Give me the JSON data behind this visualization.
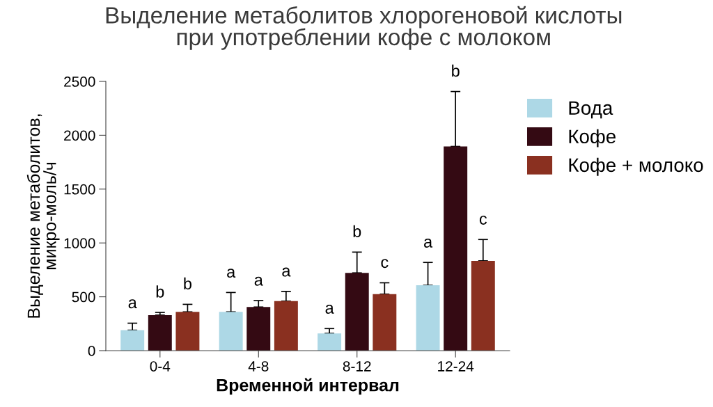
{
  "chart_data": {
    "type": "bar",
    "title": "Выделение метаболитов хлорогеновой кислоты\nпри употреблении кофе с молоком",
    "xlabel": "Временной интервал",
    "ylabel": "Выделение метаболитов,\nмикро-моль/ч",
    "categories": [
      "0-4",
      "4-8",
      "8-12",
      "12-24"
    ],
    "series": [
      {
        "name": "Вода",
        "color": "#add8e6",
        "values": [
          190,
          360,
          160,
          607
        ],
        "errors": [
          65,
          180,
          45,
          212
        ]
      },
      {
        "name": "Кофе",
        "color": "#340a13",
        "values": [
          330,
          405,
          722,
          1896
        ],
        "errors": [
          25,
          60,
          193,
          510
        ]
      },
      {
        "name": "Кофе + молоко",
        "color": "#8a3020",
        "values": [
          360,
          460,
          525,
          834
        ],
        "errors": [
          70,
          90,
          105,
          198
        ]
      }
    ],
    "annotations": [
      "a",
      "b",
      "b",
      "a",
      "a",
      "a",
      "a",
      "b",
      "c",
      "a",
      "b",
      "c"
    ],
    "ylim": [
      0,
      2500
    ],
    "yticks": [
      0,
      500,
      1000,
      1500,
      2000,
      2500
    ],
    "grid": false,
    "legend": "top right"
  }
}
